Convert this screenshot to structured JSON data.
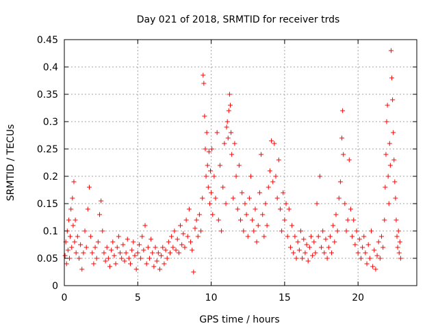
{
  "chart_data": {
    "type": "scatter",
    "title": "Day 021 of 2018, SRMTID for receiver trds",
    "xlabel": "GPS time / hours",
    "ylabel": "SRMTID / TECUs",
    "xlim": [
      0,
      24.0
    ],
    "ylim": [
      0,
      0.45
    ],
    "xticks": [
      0,
      5,
      10,
      15,
      20
    ],
    "yticks": [
      0,
      0.05,
      0.1,
      0.15,
      0.2,
      0.25,
      0.3,
      0.35,
      0.4,
      0.45
    ],
    "ytick_labels": [
      "0",
      "0.05",
      "0.1",
      "0.15",
      "0.2",
      "0.25",
      "0.3",
      "0.35",
      "0.4",
      "0.45"
    ],
    "grid": true,
    "marker": "+",
    "color": "#ff0000",
    "series": [
      {
        "name": "SRMTID",
        "points": [
          [
            0.05,
            0.055
          ],
          [
            0.1,
            0.08
          ],
          [
            0.15,
            0.04
          ],
          [
            0.2,
            0.1
          ],
          [
            0.25,
            0.065
          ],
          [
            0.3,
            0.12
          ],
          [
            0.35,
            0.05
          ],
          [
            0.4,
            0.09
          ],
          [
            0.45,
            0.14
          ],
          [
            0.5,
            0.07
          ],
          [
            0.55,
            0.16
          ],
          [
            0.6,
            0.11
          ],
          [
            0.65,
            0.19
          ],
          [
            0.7,
            0.08
          ],
          [
            0.75,
            0.12
          ],
          [
            0.8,
            0.06
          ],
          [
            0.9,
            0.09
          ],
          [
            1.0,
            0.05
          ],
          [
            1.1,
            0.075
          ],
          [
            1.2,
            0.03
          ],
          [
            1.3,
            0.06
          ],
          [
            1.4,
            0.1
          ],
          [
            1.5,
            0.07
          ],
          [
            1.6,
            0.14
          ],
          [
            1.7,
            0.18
          ],
          [
            1.8,
            0.09
          ],
          [
            1.9,
            0.06
          ],
          [
            2.0,
            0.04
          ],
          [
            2.1,
            0.07
          ],
          [
            2.2,
            0.05
          ],
          [
            2.3,
            0.08
          ],
          [
            2.4,
            0.13
          ],
          [
            2.5,
            0.155
          ],
          [
            2.6,
            0.1
          ],
          [
            2.7,
            0.06
          ],
          [
            2.8,
            0.045
          ],
          [
            2.9,
            0.07
          ],
          [
            3.0,
            0.05
          ],
          [
            3.1,
            0.035
          ],
          [
            3.2,
            0.065
          ],
          [
            3.3,
            0.08
          ],
          [
            3.4,
            0.055
          ],
          [
            3.5,
            0.04
          ],
          [
            3.6,
            0.07
          ],
          [
            3.7,
            0.09
          ],
          [
            3.8,
            0.06
          ],
          [
            3.9,
            0.05
          ],
          [
            4.0,
            0.075
          ],
          [
            4.1,
            0.045
          ],
          [
            4.2,
            0.06
          ],
          [
            4.3,
            0.085
          ],
          [
            4.4,
            0.05
          ],
          [
            4.5,
            0.04
          ],
          [
            4.6,
            0.065
          ],
          [
            4.7,
            0.08
          ],
          [
            4.8,
            0.055
          ],
          [
            4.9,
            0.03
          ],
          [
            5.0,
            0.06
          ],
          [
            5.1,
            0.075
          ],
          [
            5.2,
            0.05
          ],
          [
            5.3,
            0.09
          ],
          [
            5.4,
            0.065
          ],
          [
            5.5,
            0.11
          ],
          [
            5.6,
            0.04
          ],
          [
            5.7,
            0.07
          ],
          [
            5.8,
            0.05
          ],
          [
            5.9,
            0.085
          ],
          [
            6.0,
            0.06
          ],
          [
            6.1,
            0.035
          ],
          [
            6.2,
            0.07
          ],
          [
            6.3,
            0.045
          ],
          [
            6.4,
            0.06
          ],
          [
            6.5,
            0.03
          ],
          [
            6.6,
            0.055
          ],
          [
            6.7,
            0.07
          ],
          [
            6.8,
            0.04
          ],
          [
            6.9,
            0.065
          ],
          [
            7.0,
            0.05
          ],
          [
            7.1,
            0.08
          ],
          [
            7.2,
            0.06
          ],
          [
            7.3,
            0.09
          ],
          [
            7.4,
            0.07
          ],
          [
            7.5,
            0.1
          ],
          [
            7.6,
            0.065
          ],
          [
            7.7,
            0.085
          ],
          [
            7.8,
            0.06
          ],
          [
            7.9,
            0.11
          ],
          [
            8.0,
            0.075
          ],
          [
            8.1,
            0.095
          ],
          [
            8.2,
            0.07
          ],
          [
            8.3,
            0.12
          ],
          [
            8.4,
            0.09
          ],
          [
            8.5,
            0.14
          ],
          [
            8.6,
            0.08
          ],
          [
            8.7,
            0.065
          ],
          [
            8.8,
            0.025
          ],
          [
            8.9,
            0.105
          ],
          [
            9.0,
            0.12
          ],
          [
            9.1,
            0.09
          ],
          [
            9.2,
            0.13
          ],
          [
            9.3,
            0.1
          ],
          [
            9.4,
            0.16
          ],
          [
            9.45,
            0.385
          ],
          [
            9.5,
            0.37
          ],
          [
            9.55,
            0.31
          ],
          [
            9.6,
            0.25
          ],
          [
            9.65,
            0.2
          ],
          [
            9.7,
            0.28
          ],
          [
            9.75,
            0.22
          ],
          [
            9.8,
            0.18
          ],
          [
            9.85,
            0.245
          ],
          [
            9.9,
            0.15
          ],
          [
            9.95,
            0.21
          ],
          [
            10.0,
            0.17
          ],
          [
            10.05,
            0.25
          ],
          [
            10.1,
            0.13
          ],
          [
            10.2,
            0.2
          ],
          [
            10.3,
            0.16
          ],
          [
            10.4,
            0.28
          ],
          [
            10.5,
            0.12
          ],
          [
            10.6,
            0.22
          ],
          [
            10.7,
            0.1
          ],
          [
            10.8,
            0.18
          ],
          [
            10.9,
            0.26
          ],
          [
            11.0,
            0.15
          ],
          [
            11.05,
            0.29
          ],
          [
            11.1,
            0.3
          ],
          [
            11.15,
            0.27
          ],
          [
            11.2,
            0.32
          ],
          [
            11.25,
            0.35
          ],
          [
            11.3,
            0.33
          ],
          [
            11.35,
            0.28
          ],
          [
            11.4,
            0.24
          ],
          [
            11.5,
            0.16
          ],
          [
            11.6,
            0.26
          ],
          [
            11.7,
            0.2
          ],
          [
            11.8,
            0.14
          ],
          [
            11.9,
            0.22
          ],
          [
            12.0,
            0.12
          ],
          [
            12.1,
            0.17
          ],
          [
            12.2,
            0.1
          ],
          [
            12.3,
            0.15
          ],
          [
            12.4,
            0.13
          ],
          [
            12.5,
            0.09
          ],
          [
            12.6,
            0.16
          ],
          [
            12.7,
            0.2
          ],
          [
            12.8,
            0.12
          ],
          [
            12.9,
            0.1
          ],
          [
            13.0,
            0.14
          ],
          [
            13.1,
            0.08
          ],
          [
            13.2,
            0.11
          ],
          [
            13.3,
            0.17
          ],
          [
            13.4,
            0.24
          ],
          [
            13.5,
            0.13
          ],
          [
            13.6,
            0.09
          ],
          [
            13.7,
            0.15
          ],
          [
            13.8,
            0.11
          ],
          [
            13.9,
            0.18
          ],
          [
            14.0,
            0.21
          ],
          [
            14.1,
            0.265
          ],
          [
            14.2,
            0.19
          ],
          [
            14.3,
            0.26
          ],
          [
            14.4,
            0.2
          ],
          [
            14.5,
            0.16
          ],
          [
            14.6,
            0.23
          ],
          [
            14.7,
            0.14
          ],
          [
            14.8,
            0.1
          ],
          [
            14.9,
            0.17
          ],
          [
            15.0,
            0.12
          ],
          [
            15.1,
            0.15
          ],
          [
            15.2,
            0.09
          ],
          [
            15.3,
            0.14
          ],
          [
            15.4,
            0.07
          ],
          [
            15.5,
            0.11
          ],
          [
            15.6,
            0.06
          ],
          [
            15.7,
            0.09
          ],
          [
            15.8,
            0.05
          ],
          [
            15.9,
            0.08
          ],
          [
            16.0,
            0.065
          ],
          [
            16.1,
            0.1
          ],
          [
            16.2,
            0.05
          ],
          [
            16.3,
            0.085
          ],
          [
            16.4,
            0.06
          ],
          [
            16.5,
            0.075
          ],
          [
            16.6,
            0.045
          ],
          [
            16.7,
            0.07
          ],
          [
            16.8,
            0.09
          ],
          [
            16.9,
            0.055
          ],
          [
            17.0,
            0.08
          ],
          [
            17.1,
            0.06
          ],
          [
            17.2,
            0.15
          ],
          [
            17.3,
            0.09
          ],
          [
            17.4,
            0.2
          ],
          [
            17.5,
            0.07
          ],
          [
            17.6,
            0.1
          ],
          [
            17.7,
            0.06
          ],
          [
            17.8,
            0.085
          ],
          [
            17.9,
            0.05
          ],
          [
            18.0,
            0.07
          ],
          [
            18.1,
            0.09
          ],
          [
            18.2,
            0.06
          ],
          [
            18.3,
            0.11
          ],
          [
            18.4,
            0.08
          ],
          [
            18.5,
            0.13
          ],
          [
            18.6,
            0.1
          ],
          [
            18.7,
            0.16
          ],
          [
            18.8,
            0.19
          ],
          [
            18.9,
            0.27
          ],
          [
            18.95,
            0.32
          ],
          [
            19.0,
            0.24
          ],
          [
            19.1,
            0.15
          ],
          [
            19.2,
            0.1
          ],
          [
            19.3,
            0.12
          ],
          [
            19.4,
            0.23
          ],
          [
            19.5,
            0.14
          ],
          [
            19.6,
            0.09
          ],
          [
            19.7,
            0.12
          ],
          [
            19.8,
            0.075
          ],
          [
            19.9,
            0.1
          ],
          [
            20.0,
            0.06
          ],
          [
            20.1,
            0.085
          ],
          [
            20.2,
            0.05
          ],
          [
            20.3,
            0.07
          ],
          [
            20.4,
            0.09
          ],
          [
            20.5,
            0.06
          ],
          [
            20.6,
            0.04
          ],
          [
            20.7,
            0.075
          ],
          [
            20.8,
            0.05
          ],
          [
            20.9,
            0.1
          ],
          [
            21.0,
            0.035
          ],
          [
            21.1,
            0.065
          ],
          [
            21.2,
            0.03
          ],
          [
            21.3,
            0.055
          ],
          [
            21.4,
            0.08
          ],
          [
            21.5,
            0.05
          ],
          [
            21.6,
            0.09
          ],
          [
            21.7,
            0.07
          ],
          [
            21.8,
            0.12
          ],
          [
            21.85,
            0.18
          ],
          [
            21.9,
            0.24
          ],
          [
            21.95,
            0.3
          ],
          [
            22.0,
            0.33
          ],
          [
            22.05,
            0.2
          ],
          [
            22.1,
            0.15
          ],
          [
            22.15,
            0.26
          ],
          [
            22.2,
            0.22
          ],
          [
            22.25,
            0.43
          ],
          [
            22.3,
            0.38
          ],
          [
            22.35,
            0.34
          ],
          [
            22.4,
            0.28
          ],
          [
            22.45,
            0.23
          ],
          [
            22.5,
            0.19
          ],
          [
            22.55,
            0.16
          ],
          [
            22.6,
            0.12
          ],
          [
            22.65,
            0.09
          ],
          [
            22.7,
            0.07
          ],
          [
            22.75,
            0.1
          ],
          [
            22.8,
            0.06
          ],
          [
            22.85,
            0.08
          ],
          [
            22.9,
            0.05
          ]
        ]
      }
    ]
  }
}
